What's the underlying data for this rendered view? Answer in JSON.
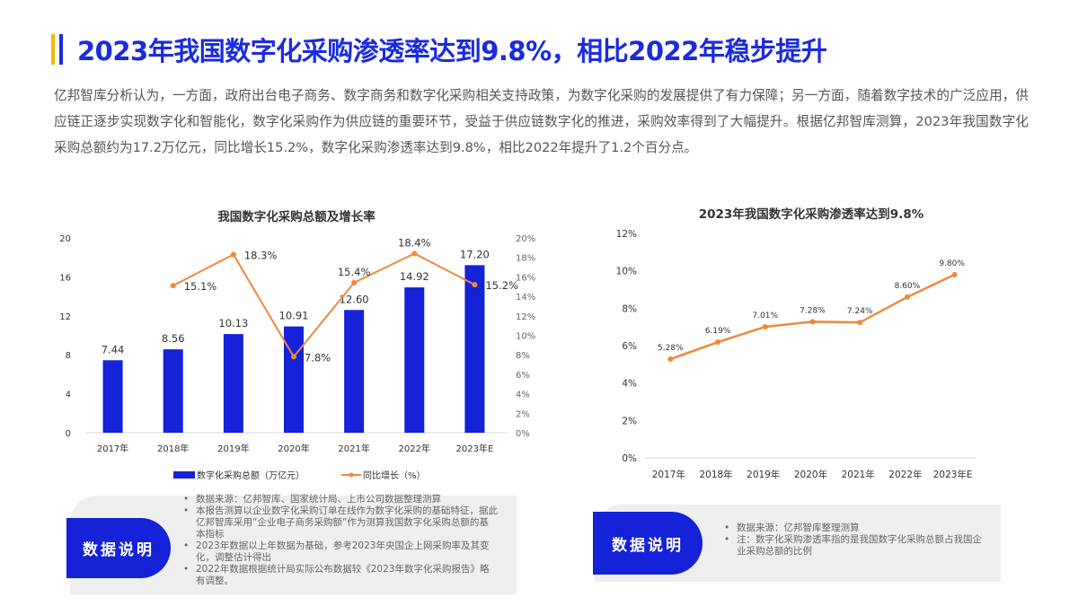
{
  "header": {
    "title": "2023年我国数字化采购渗透率达到9.8%，相比2022年稳步提升"
  },
  "body_text": "亿邦智库分析认为，一方面，政府出台电子商务、数字商务和数字化采购相关支持政策，为数字化采购的发展提供了有力保障；另一方面，随着数字技术的广泛应用，供应链正逐步实现数字化和智能化，数字化采购作为供应链的重要环节，受益于供应链数字化的推进，采购效率得到了大幅提升。根据亿邦智库测算，2023年我国数字化采购总额约为17.2万亿元，同比增长15.2%，数字化采购渗透率达到9.8%，相比2022年提升了1.2个百分点。",
  "chart_data": [
    {
      "type": "bar+line",
      "title": "我国数字化采购总额及增长率",
      "categories": [
        "2017年",
        "2018年",
        "2019年",
        "2020年",
        "2021年",
        "2022年",
        "2023年E"
      ],
      "series": [
        {
          "name": "数字化采购总额（万亿元）",
          "type": "bar",
          "axis": "left",
          "color": "#1422d8",
          "values": [
            7.44,
            8.56,
            10.13,
            10.91,
            12.6,
            14.92,
            17.2
          ],
          "labels": [
            "7.44",
            "8.56",
            "10.13",
            "10.91",
            "12.60",
            "14.92",
            "17.20"
          ]
        },
        {
          "name": "同比增长（%）",
          "type": "line",
          "axis": "right",
          "color": "#f0883a",
          "values": [
            null,
            15.1,
            18.3,
            7.8,
            15.4,
            18.4,
            15.2
          ],
          "labels": [
            "",
            "15.1%",
            "18.3%",
            "7.8%",
            "15.4%",
            "18.4%",
            "15.2%"
          ]
        }
      ],
      "ylim_left": [
        0,
        20
      ],
      "yticks_left": [
        "0",
        "4",
        "8",
        "12",
        "16",
        "20"
      ],
      "ylim_right": [
        0,
        20
      ],
      "yticks_right": [
        "0%",
        "2%",
        "4%",
        "6%",
        "8%",
        "10%",
        "12%",
        "14%",
        "16%",
        "18%",
        "20%"
      ],
      "legend": "bottom"
    },
    {
      "type": "line",
      "title": "2023年我国数字化采购渗透率达到9.8%",
      "categories": [
        "2017年",
        "2018年",
        "2019年",
        "2020年",
        "2021年",
        "2022年",
        "2023年E"
      ],
      "series": [
        {
          "color": "#f0883a",
          "values": [
            5.28,
            6.19,
            7.01,
            7.28,
            7.24,
            8.6,
            9.8
          ],
          "labels": [
            "5.28%",
            "6.19%",
            "7.01%",
            "7.28%",
            "7.24%",
            "8.60%",
            "9.80%"
          ]
        }
      ],
      "ylim": [
        0,
        12
      ],
      "yticks": [
        "0%",
        "2%",
        "4%",
        "6%",
        "8%",
        "10%",
        "12%"
      ]
    }
  ],
  "notes_left": {
    "label": "数据说明",
    "items": [
      "数据来源：亿邦智库、国家统计局、上市公司数据整理测算",
      "本报告测算以企业数字化采购订单在线作为数字化采购的基础特征，据此亿邦智库采用“企业电子商务采购额”作为测算我国数字化采购总额的基本指标",
      "2023年数据以上年数据为基础，参考2023年央国企上网采购率及其变化，调整估计得出",
      "2022年数据根据统计局实际公布数据较《2023年数字化采购报告》略有调整。"
    ]
  },
  "notes_right": {
    "label": "数据说明",
    "items": [
      "数据来源：亿邦智库整理测算",
      "注：数字化采购渗透率指的是我国数字化采购总额占我国企业采购总额的比例"
    ]
  }
}
